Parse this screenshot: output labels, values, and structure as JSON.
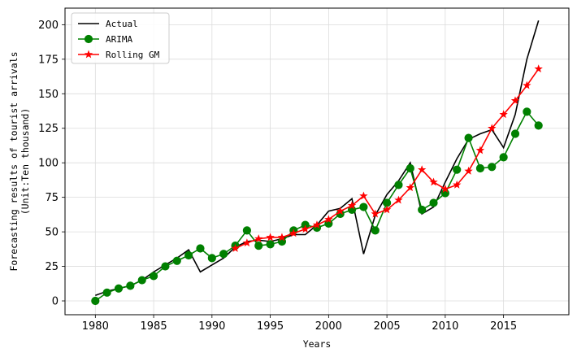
{
  "chart_data": {
    "type": "line",
    "xlabel": "Years",
    "ylabel_line1": "Forecasting results of tourist arrivals",
    "ylabel_line2": "(Unit:Ten thousand)",
    "xlim": [
      1977.4,
      2020.6
    ],
    "ylim": [
      -10,
      212
    ],
    "xticks": [
      1980,
      1985,
      1990,
      1995,
      2000,
      2005,
      2010,
      2015
    ],
    "yticks": [
      0,
      25,
      50,
      75,
      100,
      125,
      150,
      175,
      200
    ],
    "grid": true,
    "legend_position": "top-left",
    "series": [
      {
        "name": "Actual",
        "color": "#000000",
        "marker": "none",
        "points": [
          [
            1980,
            4
          ],
          [
            1981,
            7
          ],
          [
            1982,
            9
          ],
          [
            1983,
            11
          ],
          [
            1984,
            15
          ],
          [
            1985,
            21
          ],
          [
            1986,
            26
          ],
          [
            1987,
            31
          ],
          [
            1988,
            37
          ],
          [
            1989,
            21
          ],
          [
            1990,
            26
          ],
          [
            1991,
            31
          ],
          [
            1992,
            39
          ],
          [
            1993,
            43
          ],
          [
            1994,
            44
          ],
          [
            1995,
            43
          ],
          [
            1996,
            45
          ],
          [
            1997,
            48
          ],
          [
            1998,
            48
          ],
          [
            1999,
            55
          ],
          [
            2000,
            65
          ],
          [
            2001,
            67
          ],
          [
            2002,
            74
          ],
          [
            2003,
            34
          ],
          [
            2004,
            62
          ],
          [
            2005,
            77
          ],
          [
            2006,
            87
          ],
          [
            2007,
            100
          ],
          [
            2008,
            63
          ],
          [
            2009,
            68
          ],
          [
            2010,
            86
          ],
          [
            2011,
            103
          ],
          [
            2012,
            117
          ],
          [
            2013,
            121
          ],
          [
            2014,
            124
          ],
          [
            2015,
            111
          ],
          [
            2016,
            135
          ],
          [
            2017,
            175
          ],
          [
            2018,
            203
          ]
        ]
      },
      {
        "name": "ARIMA",
        "color": "#008000",
        "marker": "circle",
        "points": [
          [
            1980,
            0
          ],
          [
            1981,
            6
          ],
          [
            1982,
            9
          ],
          [
            1983,
            11
          ],
          [
            1984,
            15
          ],
          [
            1985,
            18
          ],
          [
            1986,
            25
          ],
          [
            1987,
            29
          ],
          [
            1988,
            33
          ],
          [
            1989,
            38
          ],
          [
            1990,
            31
          ],
          [
            1991,
            34
          ],
          [
            1992,
            40
          ],
          [
            1993,
            51
          ],
          [
            1994,
            40
          ],
          [
            1995,
            41
          ],
          [
            1996,
            43
          ],
          [
            1997,
            51
          ],
          [
            1998,
            55
          ],
          [
            1999,
            53
          ],
          [
            2000,
            56
          ],
          [
            2001,
            63
          ],
          [
            2002,
            66
          ],
          [
            2003,
            68
          ],
          [
            2004,
            51
          ],
          [
            2005,
            71
          ],
          [
            2006,
            84
          ],
          [
            2007,
            96
          ],
          [
            2008,
            66
          ],
          [
            2009,
            71
          ],
          [
            2010,
            78
          ],
          [
            2011,
            95
          ],
          [
            2012,
            118
          ],
          [
            2013,
            96
          ],
          [
            2014,
            97
          ],
          [
            2015,
            104
          ],
          [
            2016,
            121
          ],
          [
            2017,
            137
          ],
          [
            2018,
            127
          ]
        ]
      },
      {
        "name": "Rolling GM",
        "color": "#ff0000",
        "marker": "star",
        "points": [
          [
            1992,
            38
          ],
          [
            1993,
            42
          ],
          [
            1994,
            45
          ],
          [
            1995,
            46
          ],
          [
            1996,
            46
          ],
          [
            1997,
            49
          ],
          [
            1998,
            52
          ],
          [
            1999,
            55
          ],
          [
            2000,
            59
          ],
          [
            2001,
            65
          ],
          [
            2002,
            69
          ],
          [
            2003,
            76
          ],
          [
            2004,
            63
          ],
          [
            2005,
            66
          ],
          [
            2006,
            73
          ],
          [
            2007,
            82
          ],
          [
            2008,
            95
          ],
          [
            2009,
            86
          ],
          [
            2010,
            81
          ],
          [
            2011,
            84
          ],
          [
            2012,
            94
          ],
          [
            2013,
            109
          ],
          [
            2014,
            125
          ],
          [
            2015,
            135
          ],
          [
            2016,
            145
          ],
          [
            2017,
            156
          ],
          [
            2018,
            168
          ]
        ]
      }
    ]
  }
}
